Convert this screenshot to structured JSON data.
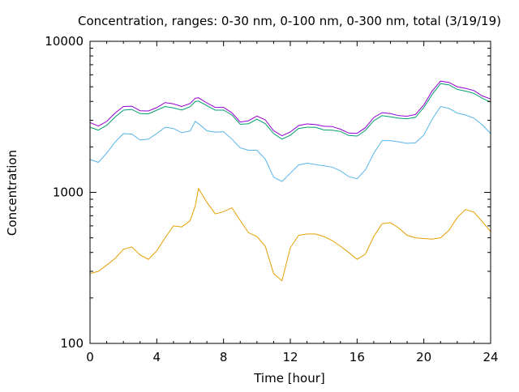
{
  "chart_data": {
    "type": "line",
    "title": "Concentration, ranges: 0-30 nm, 0-100 nm, 0-300 nm, total (3/19/19)",
    "xlabel": "Time [hour]",
    "ylabel": "Concentration",
    "xlim": [
      0,
      24
    ],
    "ylim": [
      100,
      10000
    ],
    "yscale": "log",
    "grid": false,
    "legend": "none",
    "x_ticks": [
      {
        "value": 0,
        "label": "0"
      },
      {
        "value": 4,
        "label": "4"
      },
      {
        "value": 8,
        "label": "8"
      },
      {
        "value": 12,
        "label": "12"
      },
      {
        "value": 16,
        "label": "16"
      },
      {
        "value": 20,
        "label": "20"
      },
      {
        "value": 24,
        "label": "24"
      }
    ],
    "y_ticks": [
      {
        "value": 100,
        "label": "100"
      },
      {
        "value": 1000,
        "label": "1000"
      },
      {
        "value": 10000,
        "label": "10000"
      }
    ],
    "x": [
      0,
      0.5,
      1,
      1.5,
      2,
      2.5,
      3,
      3.5,
      4,
      4.5,
      5,
      5.5,
      6,
      6.3,
      6.5,
      7,
      7.5,
      8,
      8.5,
      9,
      9.5,
      10,
      10.5,
      11,
      11.5,
      12,
      12.5,
      13,
      13.5,
      14,
      14.5,
      15,
      15.5,
      16,
      16.5,
      17,
      17.5,
      18,
      18.5,
      19,
      19.5,
      20,
      20.5,
      21,
      21.5,
      22,
      22.5,
      23,
      23.5,
      24
    ],
    "series": [
      {
        "color": "#e69f00",
        "values": [
          290,
          300,
          330,
          365,
          420,
          435,
          385,
          360,
          410,
          500,
          600,
          590,
          650,
          810,
          1060,
          860,
          720,
          745,
          790,
          650,
          540,
          510,
          440,
          290,
          260,
          430,
          520,
          530,
          530,
          510,
          480,
          440,
          400,
          360,
          390,
          510,
          620,
          630,
          580,
          520,
          500,
          495,
          490,
          500,
          560,
          680,
          770,
          740,
          640,
          550
        ]
      },
      {
        "color": "#56b4e9",
        "values": [
          1650,
          1580,
          1820,
          2150,
          2450,
          2430,
          2220,
          2250,
          2450,
          2700,
          2650,
          2480,
          2550,
          2950,
          2850,
          2560,
          2500,
          2520,
          2250,
          1970,
          1900,
          1900,
          1660,
          1260,
          1180,
          1340,
          1520,
          1560,
          1530,
          1500,
          1470,
          1390,
          1270,
          1230,
          1410,
          1810,
          2200,
          2200,
          2160,
          2110,
          2130,
          2400,
          3050,
          3700,
          3600,
          3350,
          3250,
          3100,
          2800,
          2450
        ]
      },
      {
        "color": "#009e73",
        "values": [
          2700,
          2580,
          2780,
          3150,
          3500,
          3540,
          3320,
          3310,
          3500,
          3700,
          3620,
          3510,
          3690,
          3990,
          4020,
          3750,
          3500,
          3500,
          3250,
          2820,
          2850,
          3050,
          2850,
          2450,
          2250,
          2390,
          2650,
          2700,
          2700,
          2590,
          2580,
          2530,
          2380,
          2360,
          2570,
          2980,
          3220,
          3160,
          3100,
          3070,
          3140,
          3650,
          4450,
          5250,
          5150,
          4800,
          4680,
          4520,
          4200,
          3950
        ]
      },
      {
        "color": "#9400d3",
        "values": [
          2900,
          2750,
          2950,
          3350,
          3700,
          3720,
          3470,
          3460,
          3640,
          3930,
          3850,
          3700,
          3880,
          4200,
          4230,
          3910,
          3650,
          3650,
          3360,
          2920,
          2980,
          3200,
          3020,
          2560,
          2370,
          2510,
          2770,
          2840,
          2810,
          2740,
          2730,
          2620,
          2470,
          2460,
          2680,
          3130,
          3370,
          3320,
          3220,
          3190,
          3280,
          3800,
          4700,
          5450,
          5350,
          5000,
          4880,
          4720,
          4350,
          4150
        ]
      }
    ]
  }
}
